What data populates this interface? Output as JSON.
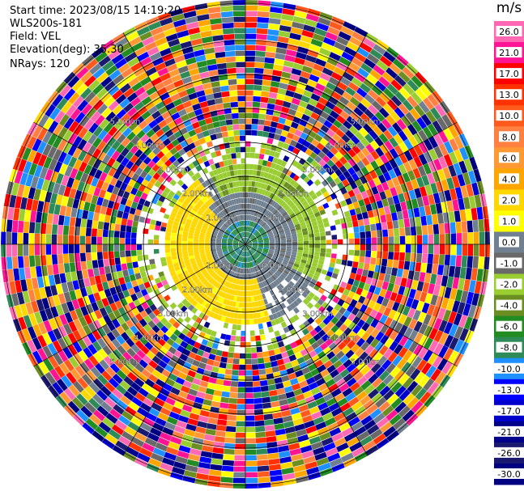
{
  "header": {
    "start_time": "Start time: 2023/08/15 14:19:20",
    "instrument": "WLS200s-181",
    "field": "Field: VEL",
    "elevation": "Elevation(deg): 35.30",
    "nrays": "NRays: 120"
  },
  "colorbar": {
    "unit": "m/s",
    "ticks": [
      "26.0",
      "21.0",
      "17.0",
      "13.0",
      "10.0",
      "8.0",
      "6.0",
      "4.0",
      "2.0",
      "1.0",
      "0.0",
      "-1.0",
      "-2.0",
      "-4.0",
      "-6.0",
      "-8.0",
      "-10.0",
      "-13.0",
      "-17.0",
      "-21.0",
      "-26.0",
      "-30.0"
    ],
    "colors": [
      "#ff69b4",
      "#ff1493",
      "#ff0000",
      "#ff3300",
      "#ff5a1e",
      "#ff8040",
      "#ff9933",
      "#ffa500",
      "#ffd700",
      "#ffff00",
      "#708090",
      "#696969",
      "#9acd32",
      "#6b8e23",
      "#228b22",
      "#2e8b57",
      "#1e90ff",
      "#0000ff",
      "#0000cd",
      "#00008b",
      "#191970",
      "#000080"
    ]
  },
  "chart_data": {
    "type": "heatmap",
    "projection": "polar PPI",
    "field": "VEL",
    "units": "m/s",
    "nrays": 120,
    "elevation_deg": 35.3,
    "range_labels_km": [
      "1.00km",
      "2.00km",
      "3.00km",
      "4.00km",
      "5.00km"
    ],
    "range_rings_km": [
      1,
      2,
      3,
      4,
      5
    ],
    "center_pattern": {
      "inner_core": "green/teal",
      "ring_1_to_1_5km": "gray",
      "south_west_sector_2km": "yellow",
      "north_east_sector_2km": "yellow-green"
    }
  }
}
